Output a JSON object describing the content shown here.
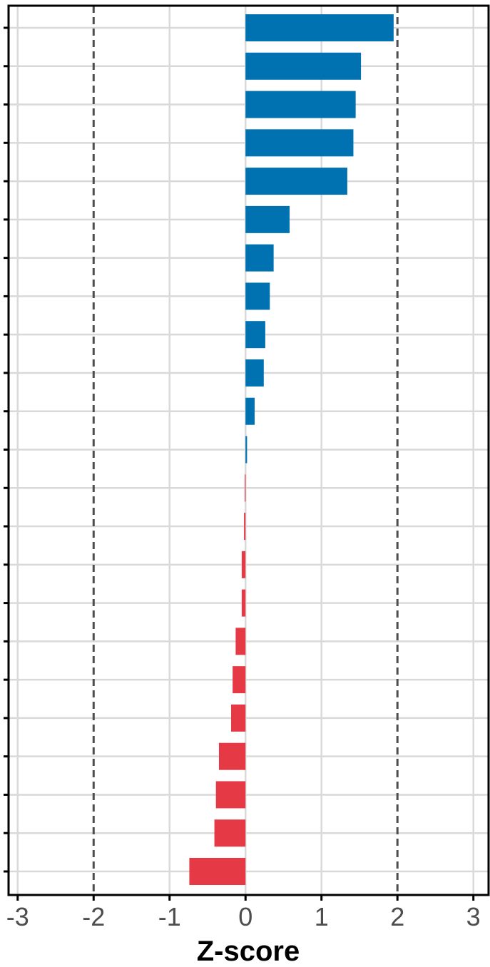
{
  "chart_data": {
    "type": "bar",
    "orientation": "horizontal",
    "xlabel": "Z-score",
    "ylabel": "",
    "title": "",
    "xlim": [
      -3.12,
      3.2
    ],
    "x_ticks": [
      -3,
      -2,
      -1,
      0,
      1,
      2,
      3
    ],
    "x_tick_labels": [
      "-3",
      "-2",
      "-1",
      "0",
      "1",
      "2",
      "3"
    ],
    "reference_lines": [
      -2,
      2
    ],
    "grid": true,
    "category_labels_visible": false,
    "values": [
      1.95,
      1.52,
      1.45,
      1.42,
      1.34,
      0.58,
      0.37,
      0.32,
      0.26,
      0.24,
      0.12,
      0.02,
      -0.01,
      -0.02,
      -0.05,
      -0.05,
      -0.13,
      -0.17,
      -0.19,
      -0.35,
      -0.39,
      -0.41,
      -0.74
    ],
    "colors": {
      "positive": "#0072b2",
      "negative": "#e63946",
      "grid": "#d9d9d9",
      "reference_line": "#4d4d4d",
      "axis": "#000000"
    }
  }
}
